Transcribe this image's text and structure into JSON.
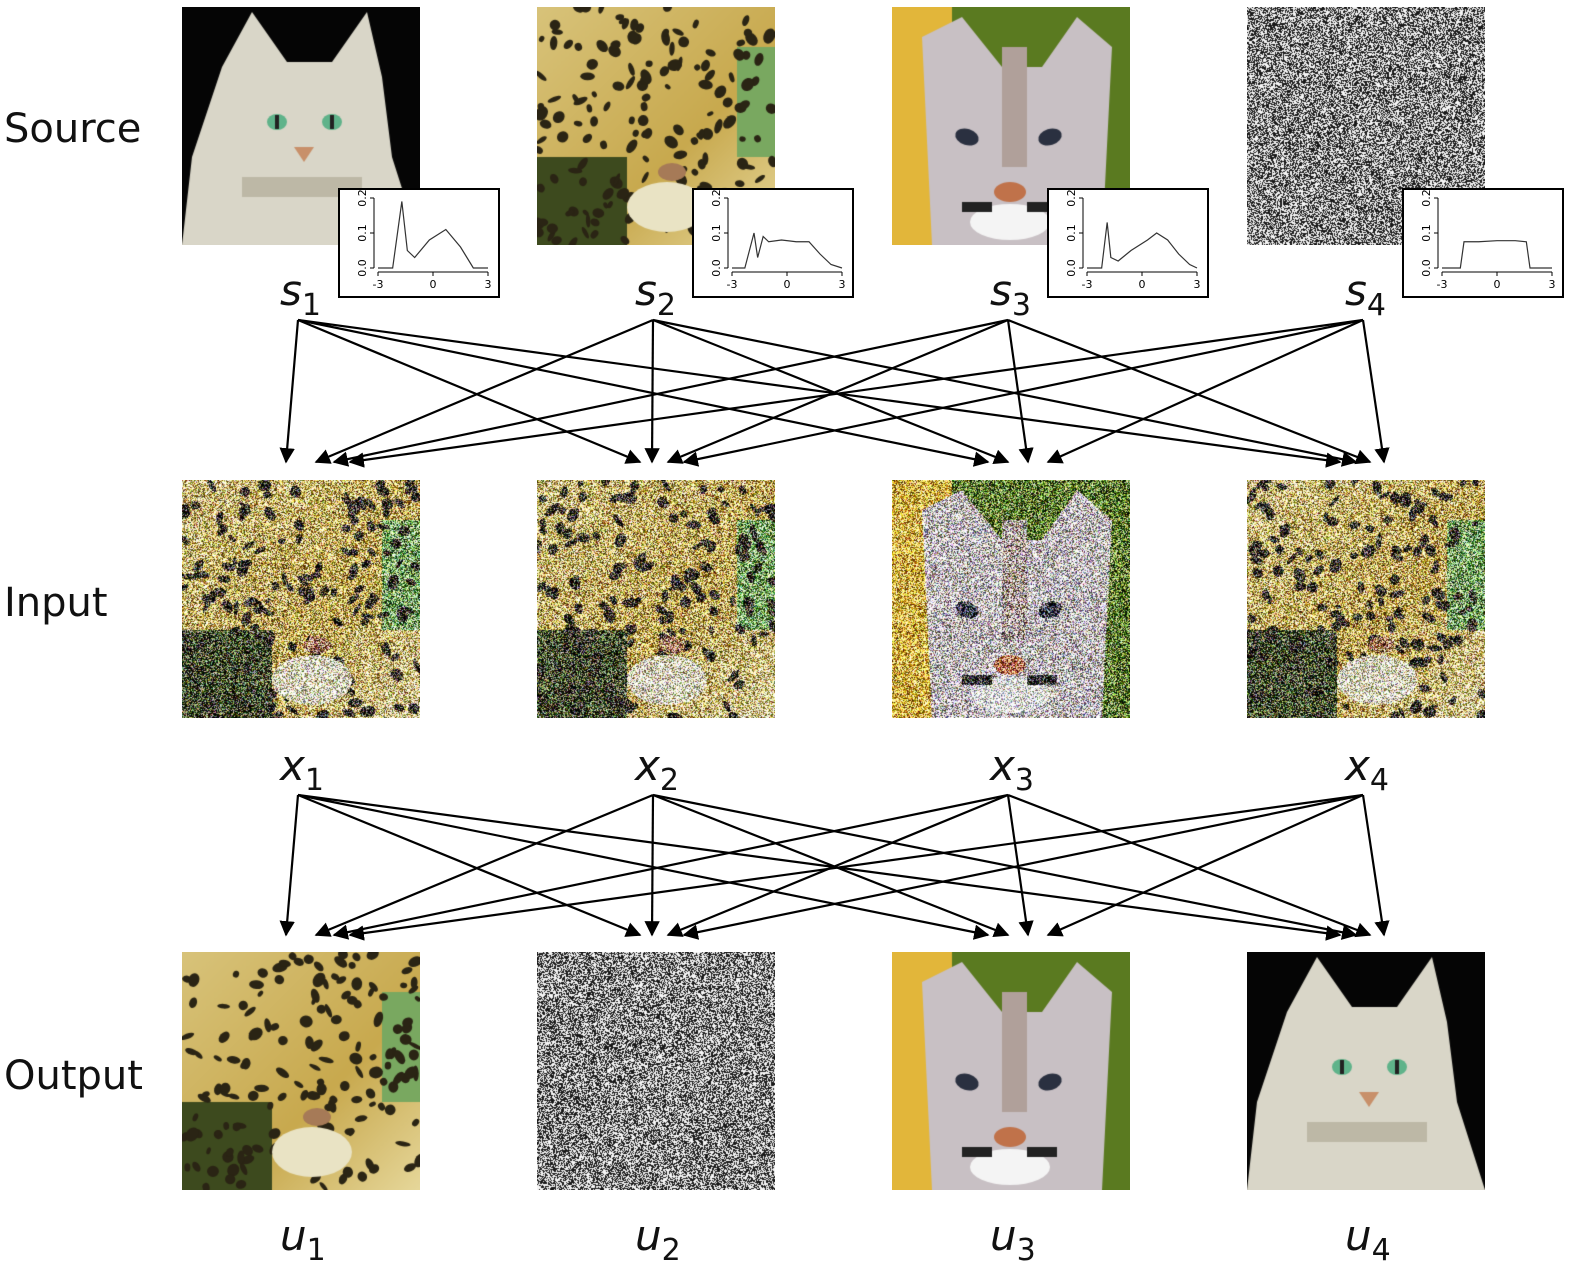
{
  "row_labels": {
    "source": "Source",
    "input": "Input",
    "output": "Output"
  },
  "source_vars": [
    {
      "sym": "s",
      "sub": "1"
    },
    {
      "sym": "s",
      "sub": "2"
    },
    {
      "sym": "s",
      "sub": "3"
    },
    {
      "sym": "s",
      "sub": "4"
    }
  ],
  "input_vars": [
    {
      "sym": "x",
      "sub": "1"
    },
    {
      "sym": "x",
      "sub": "2"
    },
    {
      "sym": "x",
      "sub": "3"
    },
    {
      "sym": "x",
      "sub": "4"
    }
  ],
  "output_vars": [
    {
      "sym": "u",
      "sub": "1"
    },
    {
      "sym": "u",
      "sub": "2"
    },
    {
      "sym": "u",
      "sub": "3"
    },
    {
      "sym": "u",
      "sub": "4"
    }
  ],
  "source_images": [
    "cat",
    "leopard",
    "cougar",
    "noise"
  ],
  "input_images": [
    "mixture",
    "mixture",
    "mixture",
    "mixture"
  ],
  "output_images": [
    "leopard",
    "noise",
    "cougar",
    "cat"
  ],
  "histogram_axes": {
    "x_ticks": [
      "-3",
      "0",
      "3"
    ],
    "y_ticks": [
      "0.0",
      "0.1",
      "0.2"
    ]
  },
  "connections": "each of the four nodes in a row connects to all four nodes in the next row"
}
